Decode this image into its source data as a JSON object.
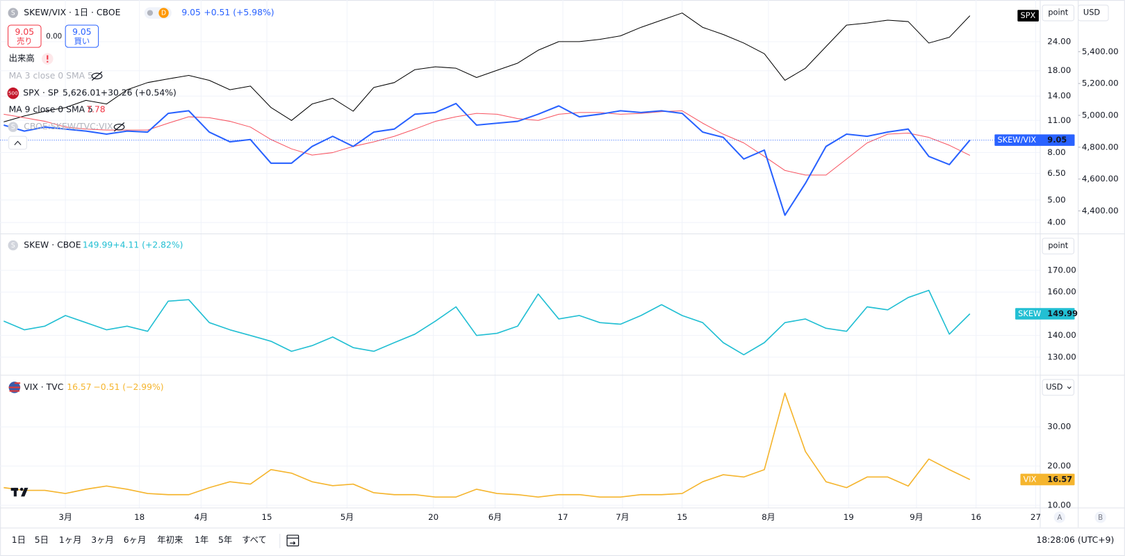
{
  "header": {
    "badge_s": "S",
    "badge_d": "D",
    "change": "+0.51 (+5.98%)",
    "sell_label": "売り",
    "buy_label": "買い",
    "spread": "0.00",
    "volume": "出来高",
    "ma3": "MA 3 close 0 SMA 5",
    "spx_badge": "500",
    "spx": "SPX · SP",
    "spx_price": "5,626.01",
    "spx_change": "+30.26 (+0.54%)",
    "ma9": "MA 9 close 0 SMA 5",
    "ratio": "CBOE:SKEW/TVC:VIX",
    "unit": "point",
    "currency": "USD"
  },
  "chart_data": [
    {
      "type": "line",
      "title": "SKEW/VIX · 1日 · CBOE",
      "log": true,
      "grid": true,
      "ylim": [
        3.6,
        35
      ],
      "yticks": [
        {
          "value": 4,
          "label": "4.00"
        },
        {
          "value": 5,
          "label": "5.00"
        },
        {
          "value": 6.5,
          "label": "6.50"
        },
        {
          "value": 8,
          "label": "8.00"
        },
        {
          "value": 11,
          "label": "11.00"
        },
        {
          "value": 14,
          "label": "14.00"
        },
        {
          "value": 18,
          "label": "18.00"
        },
        {
          "value": 24,
          "label": "24.00"
        }
      ],
      "y2lim": [
        4260,
        5702
      ],
      "y2ticks": [
        {
          "value": 4400,
          "label": "4,400.00"
        },
        {
          "value": 4600,
          "label": "4,600.00"
        },
        {
          "value": 4800,
          "label": "4,800.00"
        },
        {
          "value": 5000,
          "label": "5,000.00"
        },
        {
          "value": 5200,
          "label": "5,200.00"
        },
        {
          "value": 5400,
          "label": "5,400.00"
        }
      ],
      "series": [
        {
          "name": "SPX",
          "color": "#000000",
          "axis": "y2",
          "width": 1,
          "label_box": true,
          "values": [
            4959,
            4996,
            5026,
            5049,
            5094,
            5071,
            5161,
            5206,
            5229,
            5251,
            5220,
            5161,
            5184,
            5049,
            4968,
            5071,
            5107,
            5026,
            5175,
            5206,
            5287,
            5305,
            5296,
            5238,
            5283,
            5328,
            5409,
            5463,
            5463,
            5477,
            5499,
            5553,
            5598,
            5643,
            5553,
            5508,
            5454,
            5387,
            5220,
            5296,
            5432,
            5567,
            5580,
            5598,
            5589,
            5454,
            5490,
            5626.01
          ]
        },
        {
          "name": "MA 9 close 0 SMA 5",
          "color": "#f7525f",
          "width": 1,
          "values": [
            11.7,
            11.3,
            10.9,
            10.3,
            10.1,
            10.0,
            10.0,
            10.0,
            10.7,
            11.4,
            11.3,
            10.9,
            10.3,
            9.1,
            8.3,
            7.8,
            8.0,
            8.5,
            8.9,
            9.4,
            10.1,
            10.9,
            11.4,
            11.8,
            11.7,
            11.2,
            11.0,
            11.7,
            11.9,
            11.9,
            11.7,
            11.8,
            12.0,
            12.1,
            10.7,
            9.6,
            8.8,
            7.7,
            6.7,
            6.4,
            6.4,
            7.5,
            8.8,
            9.6,
            9.7,
            9.3,
            8.6,
            7.78
          ]
        },
        {
          "name": "SKEW/VIX",
          "color": "#2962ff",
          "width": 2,
          "label_box": true,
          "price_line": true,
          "values": [
            10.5,
            9.9,
            10.3,
            10.1,
            9.9,
            9.6,
            9.9,
            9.8,
            11.8,
            12.1,
            9.8,
            8.9,
            9.1,
            7.2,
            7.2,
            8.5,
            9.4,
            8.5,
            9.8,
            10.1,
            11.7,
            11.9,
            13.0,
            10.5,
            10.7,
            10.9,
            11.7,
            12.7,
            11.4,
            11.7,
            12.1,
            11.9,
            12.1,
            11.8,
            9.8,
            9.3,
            7.5,
            8.2,
            4.3,
            5.9,
            8.5,
            9.6,
            9.4,
            9.8,
            10.1,
            7.7,
            7.1,
            9.05
          ]
        }
      ]
    },
    {
      "type": "line",
      "title": "SKEW · CBOE",
      "subtitle": "+4.11 (+2.82%)",
      "grid": true,
      "ylim": [
        122,
        186.5
      ],
      "yticks": [
        {
          "value": 130,
          "label": "130.00"
        },
        {
          "value": 140,
          "label": "140.00"
        },
        {
          "value": 160,
          "label": "160.00"
        },
        {
          "value": 170,
          "label": "170.00"
        }
      ],
      "series": [
        {
          "name": "SKEW",
          "color": "#22bfd3",
          "width": 1.6,
          "label_box": true,
          "values": [
            146.6,
            142.6,
            144.3,
            149.2,
            145.9,
            142.6,
            144.3,
            141.9,
            155.8,
            156.5,
            145.9,
            142.6,
            140.0,
            137.3,
            132.7,
            135.3,
            139.3,
            134.4,
            132.7,
            136.7,
            140.6,
            146.6,
            153.2,
            140.0,
            141.0,
            144.3,
            159.1,
            147.6,
            149.2,
            145.9,
            145.2,
            149.2,
            154.2,
            149.2,
            145.9,
            136.7,
            131.1,
            136.7,
            145.9,
            147.6,
            143.3,
            141.9,
            153.2,
            151.8,
            157.5,
            160.8,
            140.6,
            149.99
          ]
        }
      ]
    },
    {
      "type": "line",
      "title": "VIX · TVC",
      "subtitle": "−0.51 (−2.99%)",
      "grid": true,
      "ylim": [
        9.5,
        43
      ],
      "yticks": [
        {
          "value": 10,
          "label": "10.00"
        },
        {
          "value": 20,
          "label": "20.00"
        },
        {
          "value": 30,
          "label": "30.00"
        }
      ],
      "xlim": [
        0,
        50.35
      ],
      "xticks": [
        {
          "value": 3.0,
          "label": "3月"
        },
        {
          "value": 6.6,
          "label": "18"
        },
        {
          "value": 9.6,
          "label": "4月"
        },
        {
          "value": 12.8,
          "label": "15"
        },
        {
          "value": 16.7,
          "label": "5月"
        },
        {
          "value": 20.9,
          "label": "20"
        },
        {
          "value": 23.9,
          "label": "6月"
        },
        {
          "value": 27.2,
          "label": "17"
        },
        {
          "value": 30.1,
          "label": "7月"
        },
        {
          "value": 33.0,
          "label": "15"
        },
        {
          "value": 37.2,
          "label": "8月"
        },
        {
          "value": 41.1,
          "label": "19"
        },
        {
          "value": 44.4,
          "label": "9月"
        },
        {
          "value": 47.3,
          "label": "16"
        },
        {
          "value": 50.2,
          "label": "27"
        }
      ],
      "series": [
        {
          "name": "VIX",
          "color": "#f5b52e",
          "width": 1.6,
          "label_box": true,
          "values": [
            14.5,
            13.8,
            13.8,
            13.0,
            14.1,
            14.9,
            14.1,
            13.0,
            12.7,
            12.7,
            14.5,
            16.0,
            15.4,
            19.1,
            18.2,
            16.0,
            15.0,
            15.4,
            13.2,
            12.7,
            12.7,
            12.1,
            12.1,
            14.1,
            13.0,
            12.7,
            12.1,
            12.7,
            12.7,
            12.1,
            12.1,
            12.7,
            12.7,
            13.0,
            16.0,
            17.8,
            17.2,
            19.1,
            38.6,
            23.7,
            16.0,
            14.5,
            17.2,
            17.2,
            14.9,
            21.8,
            19.1,
            16.57
          ]
        }
      ]
    }
  ],
  "toolbar": {
    "ranges": [
      "1日",
      "5日",
      "1ヶ月",
      "3ヶ月",
      "6ヶ月",
      "年初来",
      "1年",
      "5年",
      "すべて"
    ],
    "time": "18:28:06 (UTC+9)",
    "scale_a": "A",
    "scale_b": "B"
  }
}
